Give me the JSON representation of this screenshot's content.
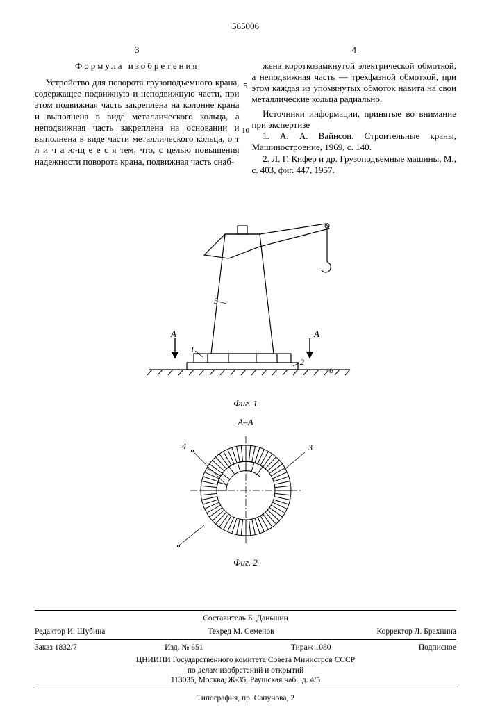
{
  "patent_number": "565006",
  "left_col_num": "3",
  "right_col_num": "4",
  "line_num_5": "5",
  "line_num_10": "10",
  "claim_title": "Формула изобретения",
  "claim_body_left": "Устройство для поворота грузоподъемного крана, содержащее подвижную и неподвижную части, при этом подвижная часть закреплена на колонне крана и выполнена в виде металлического кольца, а неподвижная часть закреплена на основании и выполнена в виде части металлического кольца, о т л и ч а ю-щ е е с я тем, что, с целью повышения надежности поворота крана, подвижная часть снаб-",
  "claim_body_right": "жена короткозамкнутой электрической обмоткой, а неподвижная часть — трехфазной обмоткой, при этом каждая из упомянутых обмоток навита на свои металлические кольца радиально.",
  "sources_title": "Источники информации, принятые во внимание при экспертизе",
  "source_1": "1. А. А. Вайнсон. Строительные краны, Машиностроение, 1969, с. 140.",
  "source_2": "2. Л. Г. Кифер и др. Грузоподъемные машины, М., с. 403, фиг. 447, 1957.",
  "fig1": {
    "caption": "Фиг. 1",
    "labels": {
      "A_left": "A",
      "A_right": "A",
      "n1": "1",
      "n2": "2",
      "n5": "5",
      "n6": "6"
    },
    "stroke": "#000000",
    "fill": "#ffffff"
  },
  "fig2": {
    "section_label": "A–A",
    "caption": "Фиг. 2",
    "labels": {
      "n3": "3",
      "n4": "4"
    },
    "stroke": "#000000"
  },
  "footer": {
    "compiler": "Составитель Б. Даньшин",
    "editor": "Редактор И. Шубина",
    "techred": "Техред М. Семенов",
    "corrector": "Корректор Л. Брахнина",
    "order": "Заказ 1832/7",
    "izd": "Изд. № 651",
    "tirazh": "Тираж 1080",
    "sub": "Подписное",
    "org1": "ЦНИИПИ Государственного комитета Совета Министров СССР",
    "org2": "по делам изобретений и открытий",
    "addr": "113035, Москва, Ж-35, Раушская наб., д. 4/5",
    "typ": "Типография, пр. Сапунова, 2"
  }
}
